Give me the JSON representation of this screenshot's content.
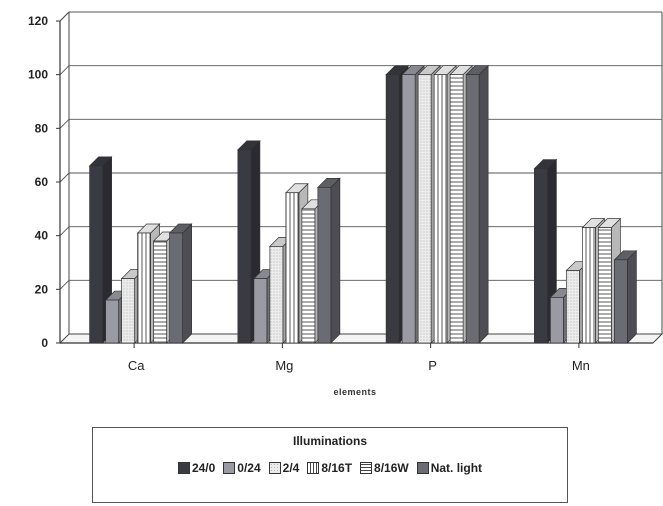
{
  "chart_data": {
    "type": "bar",
    "xlabel": "elements",
    "ylabel": "",
    "ylim": [
      0,
      120
    ],
    "yticks": [
      0,
      20,
      40,
      60,
      80,
      100,
      120
    ],
    "grid": "horizontal",
    "legend_placement": "bottom",
    "legend_title": "Illuminations",
    "categories": [
      "Ca",
      "Mg",
      "P",
      "Mn"
    ],
    "series": [
      {
        "name": "24/0",
        "values": [
          66,
          72,
          100,
          65
        ],
        "color": "#3a3a42",
        "pattern": "solid"
      },
      {
        "name": "0/24",
        "values": [
          16,
          24,
          100,
          17
        ],
        "color": "#9a9aa4",
        "pattern": "solid"
      },
      {
        "name": "2/4",
        "values": [
          24,
          36,
          100,
          27
        ],
        "color": "#e4e4e4",
        "pattern": "dotted"
      },
      {
        "name": "8/16T",
        "values": [
          41,
          56,
          100,
          43
        ],
        "color": "#ffffff",
        "pattern": "vertical-lines"
      },
      {
        "name": "8/16W",
        "values": [
          38,
          50,
          100,
          43
        ],
        "color": "#ffffff",
        "pattern": "horizontal-lines"
      },
      {
        "name": "Nat. light",
        "values": [
          41,
          58,
          100,
          31
        ],
        "color": "#6b6b73",
        "pattern": "solid"
      }
    ]
  }
}
